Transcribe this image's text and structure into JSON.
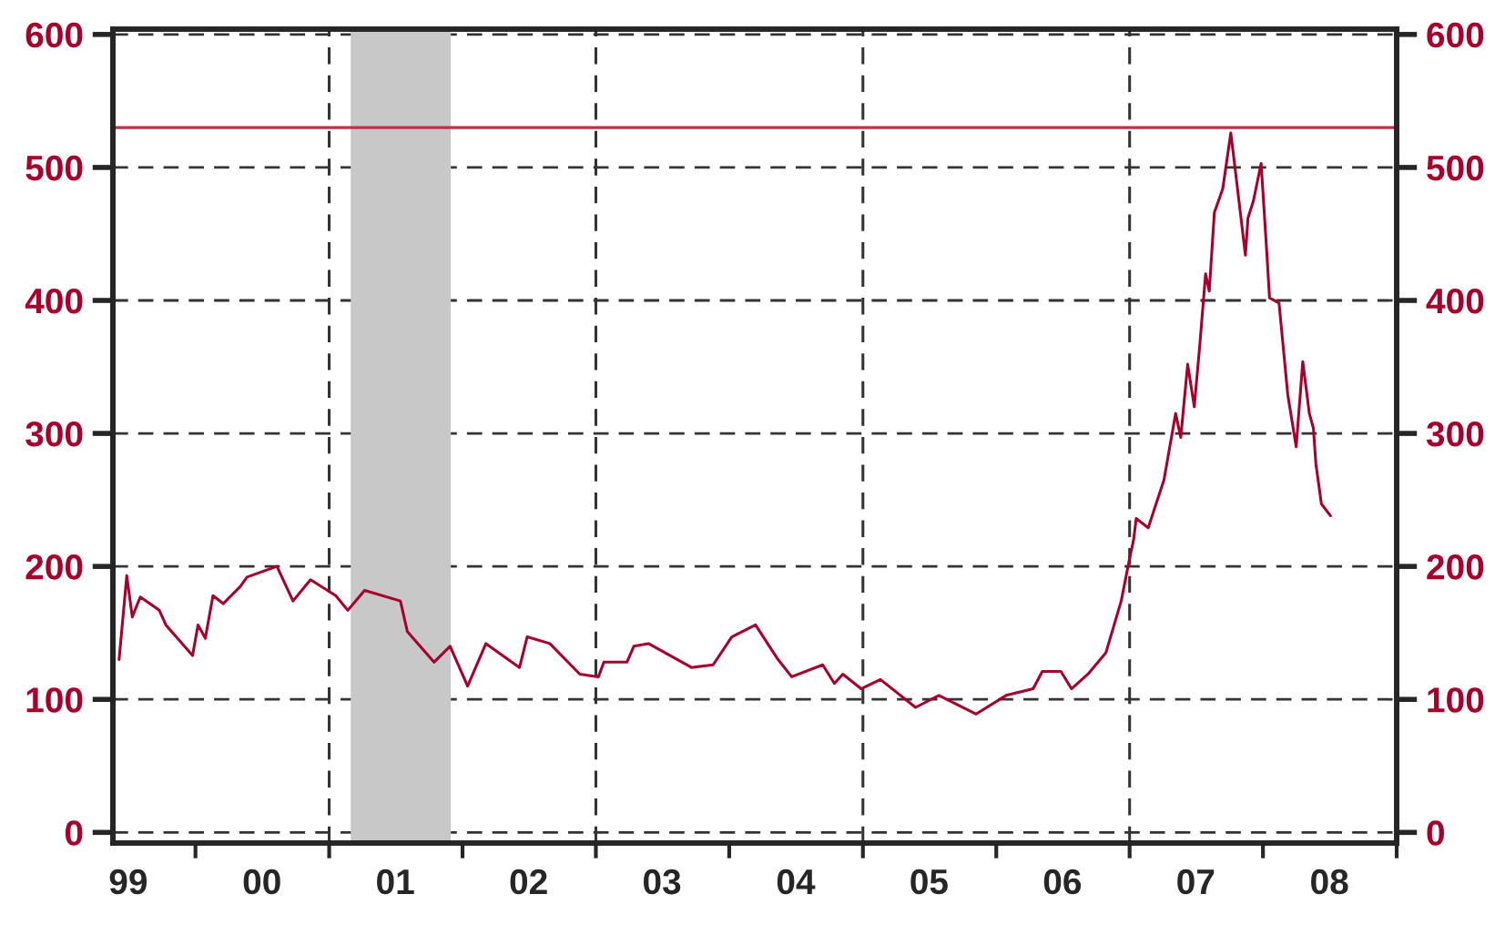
{
  "chart_data": {
    "type": "line",
    "xlim": [
      "1999-05-20",
      "2009-01-01"
    ],
    "xticks": [
      {
        "value": "1999-07-01",
        "label": "99"
      },
      {
        "value": "2000-07-01",
        "label": "00"
      },
      {
        "value": "2001-07-01",
        "label": "01"
      },
      {
        "value": "2002-07-01",
        "label": "02"
      },
      {
        "value": "2003-07-01",
        "label": "03"
      },
      {
        "value": "2004-07-01",
        "label": "04"
      },
      {
        "value": "2005-07-01",
        "label": "05"
      },
      {
        "value": "2006-07-01",
        "label": "06"
      },
      {
        "value": "2007-07-01",
        "label": "07"
      },
      {
        "value": "2008-07-01",
        "label": "08"
      },
      {
        "value": "2000-01-01",
        "label": null
      },
      {
        "value": "2001-01-01",
        "label": null
      },
      {
        "value": "2002-01-01",
        "label": null
      },
      {
        "value": "2003-01-01",
        "label": null
      },
      {
        "value": "2004-01-01",
        "label": null
      },
      {
        "value": "2005-01-01",
        "label": null
      },
      {
        "value": "2006-01-01",
        "label": null
      },
      {
        "value": "2007-01-01",
        "label": null
      },
      {
        "value": "2008-01-01",
        "label": null
      },
      {
        "value": "2009-01-01",
        "label": null
      }
    ],
    "ylim": [
      -8,
      604
    ],
    "yticks": [
      0,
      100,
      200,
      300,
      400,
      500,
      600
    ],
    "y2lim": [
      -8,
      604
    ],
    "y2ticks": [
      0,
      100,
      200,
      300,
      400,
      500,
      600
    ],
    "grid": "y",
    "legend": false,
    "line_style": "solid",
    "marker": "none",
    "x": [
      "1999-06-06",
      "1999-06-27",
      "1999-07-12",
      "1999-08-03",
      "1999-09-24",
      "1999-10-12",
      "1999-12-24",
      "2000-01-08",
      "2000-01-28",
      "2000-02-18",
      "2000-03-17",
      "2000-05-03",
      "2000-05-21",
      "2000-08-11",
      "2000-09-24",
      "2000-11-11",
      "2001-01-19",
      "2001-02-21",
      "2001-04-08",
      "2001-07-15",
      "2001-08-03",
      "2001-10-15",
      "2001-11-28",
      "2002-01-15",
      "2002-03-06",
      "2002-06-06",
      "2002-06-27",
      "2002-08-28",
      "2002-11-18",
      "2003-01-08",
      "2003-01-23",
      "2003-03-27",
      "2003-04-15",
      "2003-05-25",
      "2003-09-20",
      "2003-11-18",
      "2004-01-08",
      "2004-03-13",
      "2004-05-11",
      "2004-06-20",
      "2004-09-13",
      "2004-10-15",
      "2004-11-07",
      "2004-12-27",
      "2005-02-18",
      "2005-05-25",
      "2005-07-28",
      "2005-11-07",
      "2006-01-28",
      "2006-04-12",
      "2006-05-07",
      "2006-06-27",
      "2006-07-26",
      "2006-09-09",
      "2006-10-28",
      "2006-12-09",
      "2007-01-01",
      "2007-01-12",
      "2007-01-19",
      "2007-02-21",
      "2007-04-05",
      "2007-05-07",
      "2007-05-21",
      "2007-06-09",
      "2007-06-27",
      "2007-07-12",
      "2007-07-28",
      "2007-08-07",
      "2007-08-21",
      "2007-09-13",
      "2007-10-05",
      "2007-10-19",
      "2007-11-14",
      "2007-11-21",
      "2007-12-06",
      "2007-12-27",
      "2008-01-12",
      "2008-01-19",
      "2008-02-14",
      "2008-03-09",
      "2008-04-01",
      "2008-04-19",
      "2008-05-07",
      "2008-05-18",
      "2008-05-21",
      "2008-05-25",
      "2008-06-09",
      "2008-07-04"
    ],
    "series": [
      {
        "color": "#a8002c",
        "values": [
          130,
          193,
          162,
          177,
          167,
          156,
          133,
          156,
          146,
          178,
          172,
          185,
          192,
          200,
          174,
          190,
          178,
          167,
          182,
          174,
          151,
          128,
          140,
          110,
          142,
          124,
          147,
          142,
          119,
          117,
          128,
          128,
          140,
          142,
          124,
          126,
          147,
          156,
          131,
          117,
          126,
          112,
          119,
          108,
          115,
          94,
          103,
          89,
          103,
          108,
          121,
          121,
          108,
          119,
          135,
          174,
          206,
          220,
          236,
          229,
          265,
          315,
          297,
          352,
          320,
          366,
          420,
          407,
          466,
          484,
          526,
          494,
          434,
          462,
          475,
          503,
          434,
          402,
          398,
          329,
          290,
          354,
          315,
          304,
          null,
          277,
          247,
          238
        ]
      }
    ],
    "ref_lines": [
      {
        "axis": "y",
        "value": 530,
        "color": "#c0304a",
        "line_style": "solid"
      },
      {
        "axis": "x",
        "value": "2001-01-01",
        "color": "#333333",
        "line_style": "dashed"
      },
      {
        "axis": "x",
        "value": "2003-01-01",
        "color": "#333333",
        "line_style": "dashed"
      },
      {
        "axis": "x",
        "value": "2005-01-01",
        "color": "#333333",
        "line_style": "dashed"
      },
      {
        "axis": "x",
        "value": "2007-01-01",
        "color": "#333333",
        "line_style": "dashed"
      }
    ],
    "bands": [
      {
        "axis": "x",
        "from": "2001-03-01",
        "to": "2001-11-30",
        "color": "#c8c8c8"
      }
    ]
  }
}
